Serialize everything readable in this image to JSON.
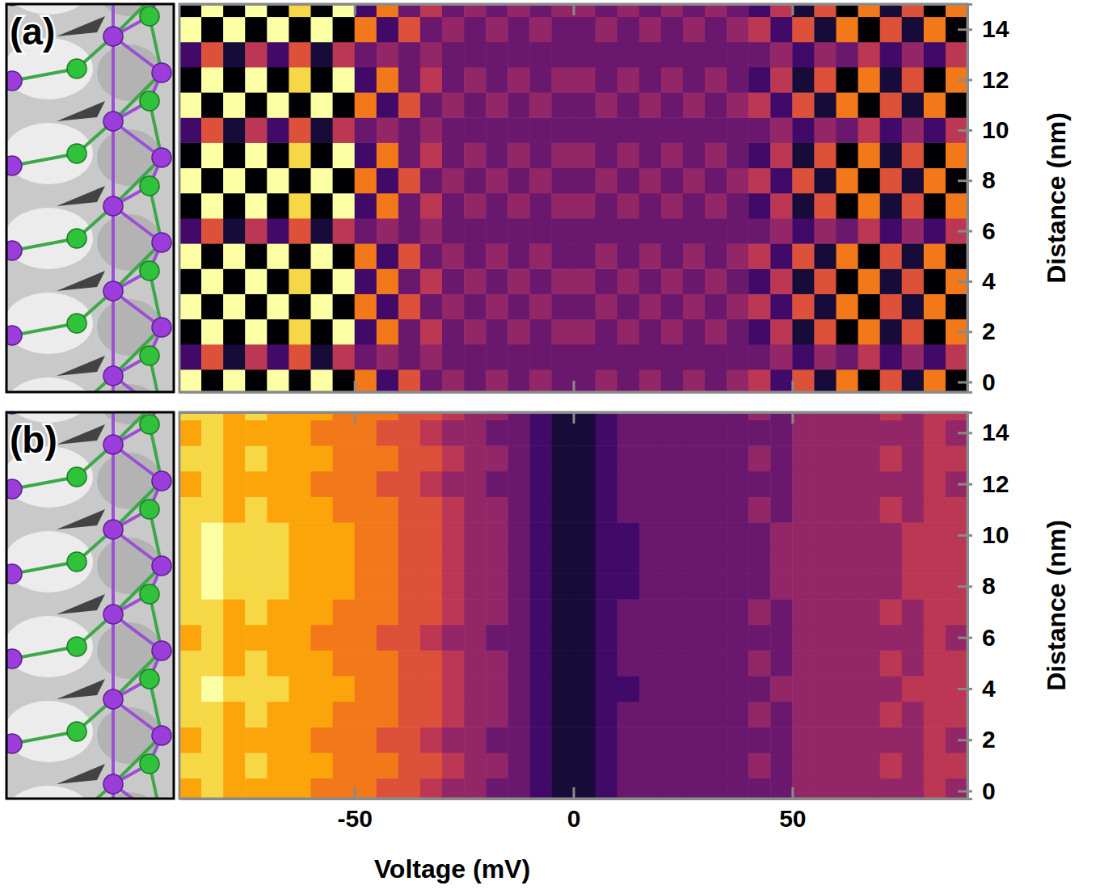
{
  "chart_data": [
    {
      "type": "heatmap",
      "title": "(a)",
      "y_label": "Distance (nm)",
      "color": "inferno",
      "tick_labels": "y",
      "xlim": [
        -90,
        90
      ],
      "ylim": [
        -0.4,
        15
      ],
      "xticks": [
        -50,
        0,
        50
      ],
      "yticks": [
        0,
        2,
        4,
        6,
        8,
        10,
        12,
        14
      ],
      "zlim": [
        0,
        10
      ],
      "x": [
        -87.5,
        -82.5,
        -77.5,
        -72.5,
        -67.5,
        -62.5,
        -57.5,
        -52.5,
        -47.5,
        -42.5,
        -37.5,
        -32.5,
        -27.5,
        -22.5,
        -17.5,
        -12.5,
        -7.5,
        -2.5,
        2.5,
        7.5,
        12.5,
        17.5,
        22.5,
        27.5,
        32.5,
        37.5,
        42.5,
        47.5,
        52.5,
        57.5,
        62.5,
        67.5,
        72.5,
        77.5,
        82.5,
        87.5
      ],
      "y": [
        0,
        1,
        2,
        3,
        4,
        5,
        6,
        7,
        8,
        9,
        10,
        11,
        12,
        13,
        14,
        15
      ],
      "z": [
        [
          10,
          0,
          10,
          0,
          10,
          0,
          10,
          0,
          7,
          2,
          6,
          3,
          4,
          3,
          4,
          3,
          4,
          3,
          3,
          4,
          3,
          4,
          3,
          4,
          3,
          4,
          5,
          2,
          6,
          1,
          7,
          0,
          6,
          1,
          7,
          0
        ],
        [
          2,
          6,
          1,
          5,
          2,
          6,
          1,
          5,
          3,
          4,
          3,
          4,
          3,
          3,
          3,
          3,
          3,
          3,
          3,
          3,
          3,
          3,
          3,
          3,
          3,
          3,
          3,
          4,
          2,
          4,
          3,
          5,
          2,
          4,
          2,
          5
        ],
        [
          0,
          10,
          0,
          10,
          0,
          9,
          0,
          10,
          2,
          7,
          3,
          5,
          3,
          4,
          3,
          4,
          3,
          4,
          4,
          3,
          4,
          3,
          4,
          3,
          4,
          3,
          2,
          5,
          1,
          6,
          0,
          7,
          1,
          6,
          0,
          7
        ],
        [
          10,
          0,
          10,
          0,
          10,
          0,
          10,
          0,
          7,
          2,
          6,
          3,
          4,
          3,
          4,
          3,
          4,
          3,
          3,
          4,
          3,
          4,
          3,
          4,
          3,
          4,
          5,
          2,
          6,
          1,
          7,
          0,
          6,
          1,
          7,
          0
        ],
        [
          0,
          10,
          0,
          10,
          0,
          9,
          0,
          10,
          2,
          7,
          3,
          5,
          3,
          4,
          3,
          4,
          3,
          4,
          4,
          3,
          4,
          3,
          4,
          3,
          4,
          3,
          2,
          5,
          1,
          6,
          0,
          7,
          1,
          6,
          0,
          7
        ],
        [
          10,
          0,
          10,
          0,
          10,
          0,
          10,
          0,
          7,
          2,
          6,
          3,
          4,
          3,
          4,
          3,
          4,
          3,
          3,
          4,
          3,
          4,
          3,
          4,
          3,
          4,
          5,
          2,
          6,
          1,
          7,
          0,
          6,
          1,
          7,
          0
        ],
        [
          2,
          6,
          1,
          5,
          2,
          6,
          1,
          5,
          3,
          4,
          3,
          4,
          3,
          3,
          3,
          3,
          3,
          3,
          3,
          3,
          3,
          3,
          3,
          3,
          3,
          3,
          3,
          4,
          2,
          4,
          3,
          5,
          2,
          4,
          2,
          5
        ],
        [
          0,
          10,
          0,
          10,
          0,
          9,
          0,
          10,
          2,
          7,
          3,
          5,
          3,
          4,
          3,
          4,
          3,
          4,
          4,
          3,
          4,
          3,
          4,
          3,
          4,
          3,
          2,
          5,
          1,
          6,
          0,
          7,
          1,
          6,
          0,
          7
        ],
        [
          10,
          0,
          10,
          0,
          10,
          0,
          10,
          0,
          7,
          2,
          6,
          3,
          4,
          3,
          4,
          3,
          4,
          3,
          3,
          4,
          3,
          4,
          3,
          4,
          3,
          4,
          5,
          2,
          6,
          1,
          7,
          0,
          6,
          1,
          7,
          0
        ],
        [
          0,
          10,
          0,
          10,
          0,
          9,
          0,
          10,
          2,
          7,
          3,
          5,
          3,
          4,
          3,
          4,
          3,
          4,
          4,
          3,
          4,
          3,
          4,
          3,
          4,
          3,
          2,
          5,
          1,
          6,
          0,
          7,
          1,
          6,
          0,
          7
        ],
        [
          2,
          6,
          1,
          5,
          2,
          6,
          1,
          5,
          3,
          4,
          3,
          4,
          3,
          3,
          3,
          3,
          3,
          3,
          3,
          3,
          3,
          3,
          3,
          3,
          3,
          3,
          3,
          4,
          2,
          4,
          3,
          5,
          2,
          4,
          2,
          5
        ],
        [
          10,
          0,
          10,
          0,
          10,
          0,
          10,
          0,
          7,
          2,
          6,
          3,
          4,
          3,
          4,
          3,
          4,
          3,
          3,
          4,
          3,
          4,
          3,
          4,
          3,
          4,
          5,
          2,
          6,
          1,
          7,
          0,
          6,
          1,
          7,
          0
        ],
        [
          0,
          10,
          0,
          10,
          0,
          9,
          0,
          10,
          2,
          7,
          3,
          5,
          3,
          4,
          3,
          4,
          3,
          4,
          4,
          3,
          4,
          3,
          4,
          3,
          4,
          3,
          2,
          5,
          1,
          6,
          0,
          7,
          1,
          6,
          0,
          7
        ],
        [
          2,
          6,
          1,
          5,
          2,
          6,
          1,
          5,
          3,
          4,
          3,
          4,
          3,
          3,
          3,
          3,
          3,
          3,
          3,
          3,
          3,
          3,
          3,
          3,
          3,
          3,
          3,
          4,
          2,
          4,
          3,
          5,
          2,
          4,
          2,
          5
        ],
        [
          10,
          0,
          10,
          0,
          10,
          0,
          10,
          0,
          7,
          2,
          6,
          3,
          4,
          3,
          4,
          3,
          4,
          3,
          3,
          4,
          3,
          4,
          3,
          4,
          3,
          4,
          5,
          2,
          6,
          1,
          7,
          0,
          6,
          1,
          7,
          0
        ],
        [
          0,
          10,
          0,
          10,
          0,
          9,
          0,
          10,
          2,
          7,
          3,
          5,
          3,
          4,
          3,
          4,
          3,
          4,
          4,
          3,
          4,
          3,
          4,
          3,
          4,
          3,
          2,
          5,
          1,
          6,
          0,
          7,
          1,
          6,
          0,
          7
        ]
      ]
    },
    {
      "type": "heatmap",
      "title": "(b)",
      "x_label": "Voltage (mV)",
      "y_label": "Distance (nm)",
      "color": "inferno",
      "tick_labels": true,
      "xlim": [
        -90,
        90
      ],
      "ylim": [
        -0.3,
        14.8
      ],
      "xticks": [
        -50,
        0,
        50
      ],
      "yticks": [
        0,
        2,
        4,
        6,
        8,
        10,
        12,
        14
      ],
      "zlim": [
        0,
        10
      ],
      "x": [
        -87.5,
        -82.5,
        -77.5,
        -72.5,
        -67.5,
        -62.5,
        -57.5,
        -52.5,
        -47.5,
        -42.5,
        -37.5,
        -32.5,
        -27.5,
        -22.5,
        -17.5,
        -12.5,
        -7.5,
        -2.5,
        2.5,
        7.5,
        12.5,
        17.5,
        22.5,
        27.5,
        32.5,
        37.5,
        42.5,
        47.5,
        52.5,
        57.5,
        62.5,
        67.5,
        72.5,
        77.5,
        82.5,
        87.5
      ],
      "y": [
        0,
        1,
        2,
        3,
        4,
        5,
        6,
        7,
        8,
        9,
        10,
        11,
        12,
        13,
        14,
        15
      ],
      "z": [
        [
          8,
          9,
          8,
          8,
          8,
          8,
          7,
          7,
          7,
          6,
          6,
          5,
          4,
          4,
          3,
          3,
          2,
          1,
          1,
          2,
          3,
          3,
          3,
          3,
          3,
          3,
          3,
          3,
          4,
          4,
          4,
          4,
          4,
          4,
          5,
          4
        ],
        [
          9,
          9,
          8,
          9,
          8,
          8,
          8,
          7,
          7,
          7,
          6,
          6,
          5,
          4,
          4,
          3,
          2,
          1,
          1,
          2,
          3,
          3,
          3,
          3,
          3,
          3,
          4,
          3,
          4,
          4,
          4,
          4,
          5,
          4,
          5,
          5
        ],
        [
          8,
          9,
          8,
          8,
          8,
          8,
          7,
          7,
          7,
          6,
          6,
          5,
          4,
          4,
          3,
          3,
          2,
          1,
          1,
          2,
          3,
          3,
          3,
          3,
          3,
          3,
          3,
          3,
          4,
          4,
          4,
          4,
          4,
          4,
          5,
          4
        ],
        [
          9,
          9,
          8,
          9,
          8,
          8,
          8,
          7,
          7,
          7,
          6,
          6,
          5,
          4,
          4,
          3,
          2,
          1,
          1,
          2,
          3,
          3,
          3,
          3,
          3,
          3,
          4,
          3,
          4,
          4,
          4,
          4,
          5,
          4,
          5,
          5
        ],
        [
          9,
          10,
          9,
          9,
          9,
          8,
          8,
          8,
          7,
          7,
          6,
          6,
          5,
          4,
          4,
          3,
          2,
          1,
          1,
          2,
          2,
          3,
          3,
          3,
          3,
          3,
          3,
          4,
          4,
          4,
          4,
          4,
          4,
          5,
          5,
          5
        ],
        [
          9,
          9,
          8,
          9,
          8,
          8,
          8,
          7,
          7,
          7,
          6,
          6,
          5,
          4,
          4,
          3,
          2,
          1,
          1,
          2,
          3,
          3,
          3,
          3,
          3,
          3,
          4,
          3,
          4,
          4,
          4,
          4,
          5,
          4,
          5,
          5
        ],
        [
          8,
          9,
          8,
          8,
          8,
          8,
          7,
          7,
          7,
          6,
          6,
          5,
          4,
          4,
          3,
          3,
          2,
          1,
          1,
          2,
          3,
          3,
          3,
          3,
          3,
          3,
          3,
          3,
          4,
          4,
          4,
          4,
          4,
          4,
          5,
          4
        ],
        [
          9,
          9,
          8,
          9,
          8,
          8,
          8,
          7,
          7,
          7,
          6,
          6,
          5,
          4,
          4,
          3,
          2,
          1,
          1,
          2,
          3,
          3,
          3,
          3,
          3,
          3,
          4,
          3,
          4,
          4,
          4,
          4,
          5,
          4,
          5,
          5
        ],
        [
          9,
          10,
          9,
          9,
          9,
          8,
          8,
          8,
          7,
          7,
          6,
          6,
          5,
          4,
          4,
          3,
          2,
          1,
          1,
          2,
          2,
          3,
          3,
          3,
          3,
          3,
          3,
          4,
          4,
          4,
          4,
          4,
          4,
          5,
          5,
          5
        ],
        [
          9,
          10,
          9,
          9,
          9,
          8,
          8,
          8,
          7,
          7,
          6,
          6,
          5,
          4,
          4,
          3,
          2,
          1,
          1,
          2,
          2,
          3,
          3,
          3,
          3,
          3,
          3,
          4,
          4,
          4,
          4,
          4,
          4,
          5,
          5,
          5
        ],
        [
          9,
          10,
          9,
          9,
          9,
          8,
          8,
          8,
          7,
          7,
          6,
          6,
          5,
          4,
          4,
          3,
          2,
          1,
          1,
          2,
          2,
          3,
          3,
          3,
          3,
          3,
          3,
          4,
          4,
          4,
          4,
          4,
          4,
          5,
          5,
          5
        ],
        [
          9,
          9,
          8,
          9,
          8,
          8,
          8,
          7,
          7,
          7,
          6,
          6,
          5,
          4,
          4,
          3,
          2,
          1,
          1,
          2,
          3,
          3,
          3,
          3,
          3,
          3,
          4,
          3,
          4,
          4,
          4,
          4,
          5,
          4,
          5,
          5
        ],
        [
          8,
          9,
          8,
          8,
          8,
          8,
          7,
          7,
          7,
          6,
          6,
          5,
          4,
          4,
          3,
          3,
          2,
          1,
          1,
          2,
          3,
          3,
          3,
          3,
          3,
          3,
          3,
          3,
          4,
          4,
          4,
          4,
          4,
          4,
          5,
          4
        ],
        [
          9,
          9,
          8,
          9,
          8,
          8,
          8,
          7,
          7,
          7,
          6,
          6,
          5,
          4,
          4,
          3,
          2,
          1,
          1,
          2,
          3,
          3,
          3,
          3,
          3,
          3,
          4,
          3,
          4,
          4,
          4,
          4,
          5,
          4,
          5,
          5
        ],
        [
          8,
          9,
          8,
          8,
          8,
          8,
          7,
          7,
          7,
          6,
          6,
          5,
          4,
          4,
          3,
          3,
          2,
          1,
          1,
          2,
          3,
          3,
          3,
          3,
          3,
          3,
          3,
          3,
          4,
          4,
          4,
          4,
          4,
          4,
          5,
          4
        ],
        [
          9,
          9,
          8,
          9,
          8,
          8,
          8,
          7,
          7,
          7,
          6,
          6,
          5,
          4,
          4,
          3,
          2,
          1,
          1,
          2,
          3,
          3,
          3,
          3,
          3,
          3,
          4,
          3,
          4,
          4,
          4,
          4,
          5,
          4,
          5,
          5
        ]
      ]
    }
  ]
}
